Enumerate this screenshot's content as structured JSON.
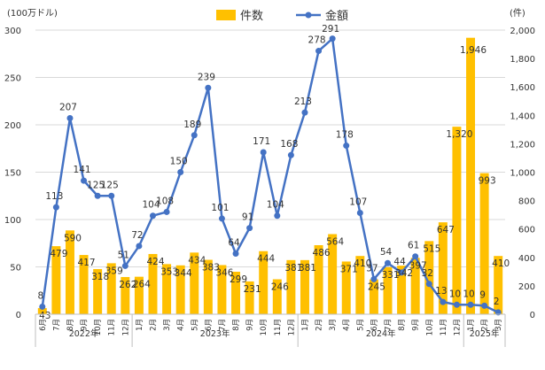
{
  "chart_data": {
    "type": "bar+line",
    "categories": [
      "6月",
      "7月",
      "8月",
      "9月",
      "10月",
      "11月",
      "12月",
      "1月",
      "2月",
      "3月",
      "4月",
      "5月",
      "6月",
      "7月",
      "8月",
      "9月",
      "10月",
      "11月",
      "12月",
      "1月",
      "2月",
      "3月",
      "4月",
      "5月",
      "6月",
      "7月",
      "8月",
      "9月",
      "10月",
      "11月",
      "12月",
      "1月",
      "2月",
      "3月"
    ],
    "year_groups": [
      {
        "label": "2022年",
        "start": 0,
        "end": 6
      },
      {
        "label": "2023年",
        "start": 7,
        "end": 18
      },
      {
        "label": "2024年",
        "start": 19,
        "end": 30
      },
      {
        "label": "2025年",
        "start": 31,
        "end": 33
      }
    ],
    "left_axis": {
      "unit": "(100万ドル)",
      "ticks": [
        "0",
        "50",
        "100",
        "150",
        "200",
        "250",
        "300"
      ],
      "min": 0,
      "max": 300
    },
    "right_axis": {
      "unit": "(件)",
      "ticks": [
        "0",
        "200",
        "400",
        "600",
        "800",
        "1,000",
        "1,200",
        "1,400",
        "1,600",
        "1,800",
        "2,000"
      ],
      "min": 0,
      "max": 2000
    },
    "series": [
      {
        "name": "件数",
        "kind": "bar",
        "axis": "right",
        "color": "#FFC000",
        "values": [
          43,
          479,
          590,
          417,
          318,
          359,
          262,
          264,
          424,
          353,
          344,
          434,
          383,
          346,
          299,
          231,
          444,
          246,
          381,
          381,
          486,
          564,
          371,
          410,
          245,
          331,
          342,
          397,
          515,
          647,
          1320,
          1946,
          993,
          410
        ],
        "labels": [
          "43",
          "479",
          "590",
          "417",
          "318",
          "359",
          "262",
          "264",
          "424",
          "353",
          "344",
          "434",
          "383",
          "346",
          "299",
          "231",
          "444",
          "246",
          "381",
          "381",
          "486",
          "564",
          "371",
          "410",
          "245",
          "331",
          "342",
          "397",
          "515",
          "647",
          "1,320",
          "1,946",
          "993",
          "410"
        ]
      },
      {
        "name": "金額",
        "kind": "line",
        "axis": "left",
        "color": "#4472C4",
        "values": [
          8,
          113,
          207,
          141,
          125,
          125,
          51,
          72,
          104,
          108,
          150,
          189,
          239,
          101,
          64,
          91,
          171,
          104,
          168,
          213,
          278,
          291,
          178,
          107,
          37,
          54,
          44,
          61,
          32,
          13,
          10,
          10,
          9,
          2
        ],
        "labels": [
          "8",
          "113",
          "207",
          "141",
          "125",
          "125",
          "51",
          "72",
          "104",
          "108",
          "150",
          "189",
          "239",
          "101",
          "64",
          "91",
          "171",
          "104",
          "168",
          "213",
          "278",
          "291",
          "178",
          "107",
          "37",
          "54",
          "44",
          "61",
          "32",
          "13",
          "10",
          "10",
          "9",
          "2"
        ]
      }
    ]
  }
}
